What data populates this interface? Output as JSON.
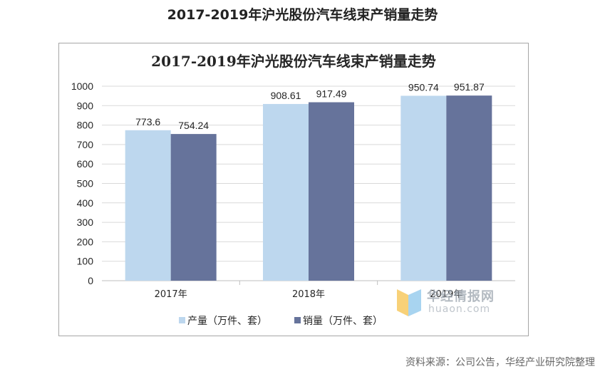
{
  "page": {
    "title": "2017-2019年沪光股份汽车线束产销量走势",
    "source": "资料来源：公司公告，华经产业研究院整理"
  },
  "watermark": {
    "text_cn": "华经情报网",
    "text_en": "huaon.com"
  },
  "colors": {
    "series1": "#bdd7ee",
    "series2": "#66739b",
    "grid": "#d9d9d9",
    "axis": "#bfbfbf"
  },
  "chart_data": {
    "type": "bar",
    "title": "2017-2019年沪光股份汽车线束产销量走势",
    "categories": [
      "2017年",
      "2018年",
      "2019年"
    ],
    "series": [
      {
        "name": "产量（万件、套）",
        "values": [
          773.6,
          908.61,
          950.74
        ],
        "labels": [
          "773.6",
          "908.61",
          "950.74"
        ]
      },
      {
        "name": "销量（万件、套）",
        "values": [
          754.24,
          917.49,
          951.87
        ],
        "labels": [
          "754.24",
          "917.49",
          "951.87"
        ]
      }
    ],
    "yticks": [
      "0",
      "100",
      "200",
      "300",
      "400",
      "500",
      "600",
      "700",
      "800",
      "900",
      "1000"
    ],
    "ylim": [
      0,
      1000
    ],
    "grid": true,
    "legend_position": "bottom"
  }
}
